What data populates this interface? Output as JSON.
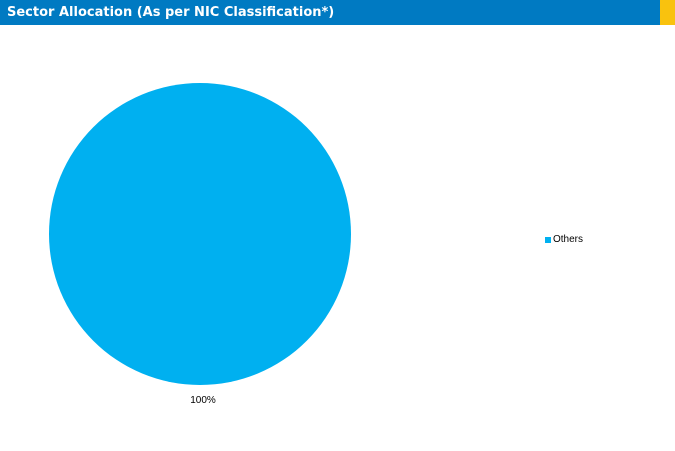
{
  "header": {
    "title": "Sector Allocation (As per NIC Classification*)",
    "bar_color": "#007ac2",
    "accent_color": "#f9c20e"
  },
  "chart_data": {
    "type": "pie",
    "categories": [
      "Others"
    ],
    "values": [
      100
    ],
    "data_labels": [
      "100%"
    ],
    "colors": [
      "#00b0f0"
    ],
    "legend_position": "right"
  },
  "legend": {
    "items": [
      {
        "label": "Others",
        "color": "#00b0f0"
      }
    ]
  }
}
